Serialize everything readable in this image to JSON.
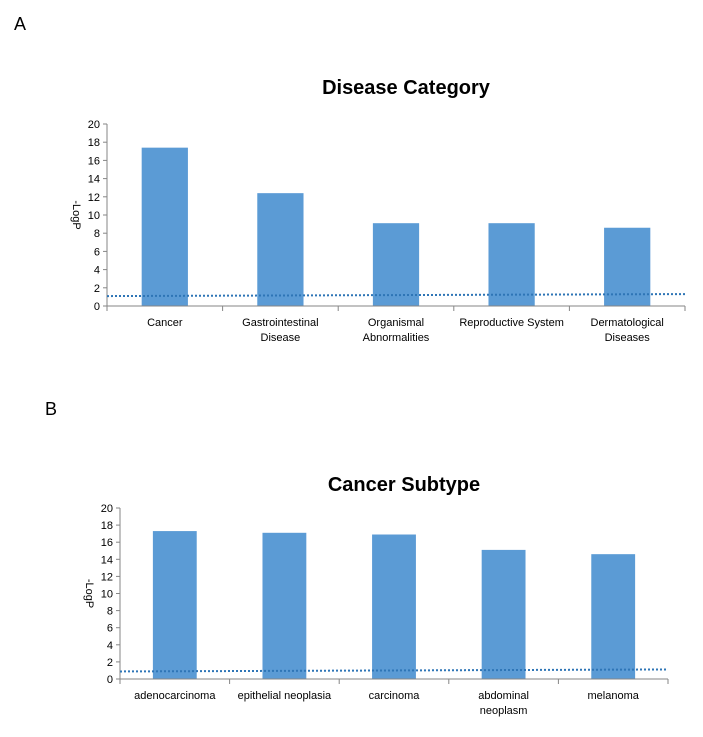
{
  "panels": {
    "a_label": "A",
    "b_label": "B"
  },
  "colors": {
    "bar": "#5b9bd5",
    "threshold": "#2e75b6",
    "axis": "#868686"
  },
  "chart_data": [
    {
      "type": "bar",
      "title": "Disease Category",
      "ylabel": "-LogP",
      "xlabel": "",
      "ylim": [
        0,
        20
      ],
      "ytick_step": 2,
      "grid": false,
      "categories": [
        [
          "Cancer"
        ],
        [
          "Gastrointestinal",
          "Disease"
        ],
        [
          "Organismal",
          "Abnormalities"
        ],
        [
          "Reproductive System"
        ],
        [
          "Dermatological",
          "Diseases"
        ]
      ],
      "values": [
        17.4,
        12.4,
        9.1,
        9.1,
        8.6
      ],
      "threshold": 1.2
    },
    {
      "type": "bar",
      "title": "Cancer Subtype",
      "ylabel": "-LogP",
      "xlabel": "",
      "ylim": [
        0,
        20
      ],
      "ytick_step": 2,
      "grid": false,
      "categories": [
        [
          "adenocarcinoma"
        ],
        [
          "epithelial neoplasia"
        ],
        [
          "carcinoma"
        ],
        [
          "abdominal",
          "neoplasm"
        ],
        [
          "melanoma"
        ]
      ],
      "values": [
        17.3,
        17.1,
        16.9,
        15.1,
        14.6
      ],
      "threshold": 1.0
    }
  ]
}
